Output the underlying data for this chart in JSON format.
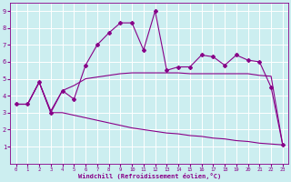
{
  "background_color": "#cceef0",
  "grid_color": "#ffffff",
  "line_color": "#880088",
  "xlabel": "Windchill (Refroidissement éolien,°C)",
  "xlim": [
    -0.5,
    23.5
  ],
  "ylim": [
    0,
    9.5
  ],
  "xticks": [
    0,
    1,
    2,
    3,
    4,
    5,
    6,
    7,
    8,
    9,
    10,
    11,
    12,
    13,
    14,
    15,
    16,
    17,
    18,
    19,
    20,
    21,
    22,
    23
  ],
  "yticks": [
    1,
    2,
    3,
    4,
    5,
    6,
    7,
    8,
    9
  ],
  "spiky_x": [
    0,
    1,
    2,
    3,
    4,
    5,
    6,
    7,
    8,
    9,
    10,
    11,
    12,
    13,
    14,
    15,
    16,
    17,
    18,
    19,
    20,
    21,
    22,
    23
  ],
  "spiky_y": [
    3.5,
    3.5,
    4.8,
    3.0,
    4.3,
    3.8,
    5.8,
    7.0,
    7.7,
    8.3,
    8.3,
    6.7,
    9.0,
    5.5,
    5.7,
    5.7,
    6.4,
    6.3,
    5.8,
    6.4,
    6.1,
    6.0,
    4.5,
    1.1
  ],
  "smooth_x": [
    0,
    1,
    2,
    3,
    4,
    5,
    6,
    7,
    8,
    9,
    10,
    11,
    12,
    13,
    14,
    15,
    16,
    17,
    18,
    19,
    20,
    21,
    22,
    23
  ],
  "smooth_y": [
    3.5,
    3.5,
    4.8,
    3.1,
    4.3,
    4.6,
    5.0,
    5.1,
    5.2,
    5.3,
    5.35,
    5.35,
    5.35,
    5.35,
    5.35,
    5.3,
    5.3,
    5.3,
    5.3,
    5.3,
    5.3,
    5.2,
    5.15,
    1.1
  ],
  "bottom_x": [
    0,
    1,
    2,
    3,
    4,
    5,
    6,
    7,
    8,
    9,
    10,
    11,
    12,
    13,
    14,
    15,
    16,
    17,
    18,
    19,
    20,
    21,
    22,
    23
  ],
  "bottom_y": [
    3.5,
    3.5,
    4.8,
    3.0,
    3.0,
    2.85,
    2.7,
    2.55,
    2.4,
    2.25,
    2.1,
    2.0,
    1.9,
    1.8,
    1.75,
    1.65,
    1.6,
    1.5,
    1.45,
    1.35,
    1.3,
    1.2,
    1.15,
    1.1
  ]
}
